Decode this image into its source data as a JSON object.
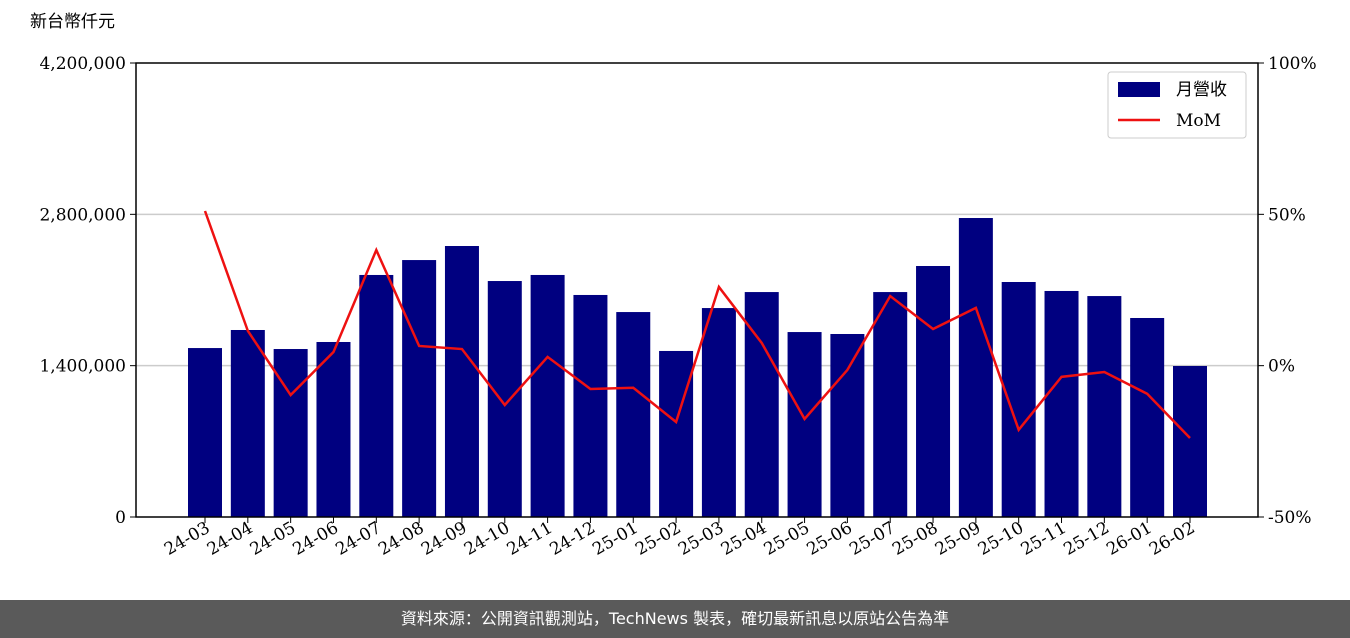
{
  "chart_data": {
    "type": "bar-line",
    "y_label": "新台幣仟元",
    "categories": [
      "24-03",
      "24-04",
      "24-05",
      "24-06",
      "24-07",
      "24-08",
      "24-09",
      "24-10",
      "24-11",
      "24-12",
      "25-01",
      "25-02",
      "25-03",
      "25-04",
      "25-05",
      "25-06",
      "25-07",
      "25-08",
      "25-09",
      "25-10",
      "25-11",
      "25-12",
      "26-01",
      "26-02"
    ],
    "series": [
      {
        "name": "月營收",
        "color": "#000080",
        "type": "bar",
        "values": [
          1563000,
          1730000,
          1554000,
          1619000,
          2239000,
          2377000,
          2507000,
          2183000,
          2239000,
          2054000,
          1896000,
          1536000,
          1933000,
          2081000,
          1711000,
          1693000,
          2081000,
          2322000,
          2766000,
          2174000,
          2091000,
          2044000,
          1841000,
          1397000
        ]
      },
      {
        "name": "MoM",
        "color": "#ee1111",
        "type": "line",
        "axis": "y2",
        "values": [
          51.1,
          11.5,
          -9.7,
          4.5,
          38.2,
          6.5,
          5.5,
          -13.0,
          2.9,
          -7.7,
          -7.3,
          -18.6,
          26.0,
          7.5,
          -17.6,
          -1.4,
          23.0,
          12.1,
          19.1,
          -21.2,
          -3.7,
          -2.1,
          -9.3,
          -23.9
        ]
      }
    ],
    "ylim": [
      0,
      4200000
    ],
    "yticks": [
      {
        "value": 0,
        "label": "0"
      },
      {
        "value": 1400000,
        "label": "1,400,000"
      },
      {
        "value": 2800000,
        "label": "2,800,000"
      },
      {
        "value": 4200000,
        "label": "4,200,000"
      }
    ],
    "y2lim": [
      -50,
      100
    ],
    "y2ticks": [
      {
        "value": -50,
        "label": "-50%"
      },
      {
        "value": 0,
        "label": "0%"
      },
      {
        "value": 50,
        "label": "50%"
      },
      {
        "value": 100,
        "label": "100%"
      }
    ],
    "grid": true,
    "legend": "upper right"
  },
  "footer": "資料來源：公開資訊觀測站，TechNews 製表，確切最新訊息以原站公告為準"
}
